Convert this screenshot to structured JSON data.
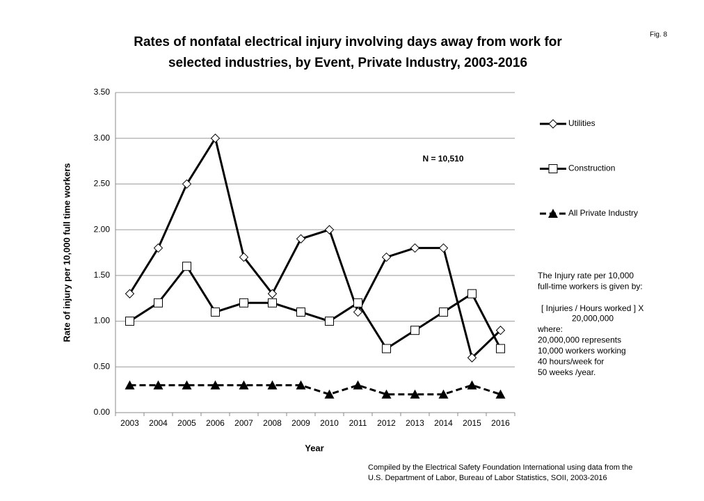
{
  "chart_data": {
    "type": "line",
    "title": [
      "Rates of nonfatal electrical injury involving days away from work for",
      "selected industries, by Event, Private Industry, 2003-2016"
    ],
    "figure_label": "Fig. 8",
    "annotation": "N = 10,510",
    "y_label": "Rate of injury per 10,000 full time workers",
    "x_label": "Year",
    "categories": [
      2003,
      2004,
      2005,
      2006,
      2007,
      2008,
      2009,
      2010,
      2011,
      2012,
      2013,
      2014,
      2015,
      2016
    ],
    "series": [
      {
        "name": "Utilities",
        "color": "#000000",
        "marker": "diamond",
        "dashed": false,
        "values": [
          1.3,
          1.8,
          2.5,
          3.0,
          1.7,
          1.3,
          1.9,
          2.0,
          1.1,
          1.7,
          1.8,
          1.8,
          0.6,
          0.9
        ]
      },
      {
        "name": "Construction",
        "color": "#000000",
        "marker": "square",
        "dashed": false,
        "values": [
          1.0,
          1.2,
          1.6,
          1.1,
          1.2,
          1.2,
          1.1,
          1.0,
          1.2,
          0.7,
          0.9,
          1.1,
          1.3,
          0.7
        ]
      },
      {
        "name": "All Private Industry",
        "color": "#000000",
        "marker": "triangle",
        "dashed": true,
        "values": [
          0.3,
          0.3,
          0.3,
          0.3,
          0.3,
          0.3,
          0.3,
          0.2,
          0.3,
          0.2,
          0.2,
          0.2,
          0.3,
          0.2
        ]
      }
    ],
    "ylim": [
      0,
      3.5
    ],
    "yticks": [
      {
        "value": 0,
        "label": "0.00"
      },
      {
        "value": 0.5,
        "label": "0.50"
      },
      {
        "value": 1,
        "label": "1.00"
      },
      {
        "value": 1.5,
        "label": "1.50"
      },
      {
        "value": 2,
        "label": "2.00"
      },
      {
        "value": 2.5,
        "label": "2.50"
      },
      {
        "value": 3,
        "label": "3.00"
      },
      {
        "value": 3.5,
        "label": "3.50"
      }
    ],
    "grid": true,
    "legend": "right",
    "note": [
      "The Injury rate per 10,000",
      "full-time workers is given by:",
      "[ Injuries / Hours worked ] X",
      "20,000,000",
      "where:",
      "20,000,000  represents",
      "10,000 workers working",
      "40 hours/week for",
      "50 weeks /year."
    ],
    "source": [
      "Compiled by the Electrical Safety Foundation International using data from the",
      "U.S. Department of Labor, Bureau of Labor Statistics, SOII, 2003-2016"
    ]
  }
}
